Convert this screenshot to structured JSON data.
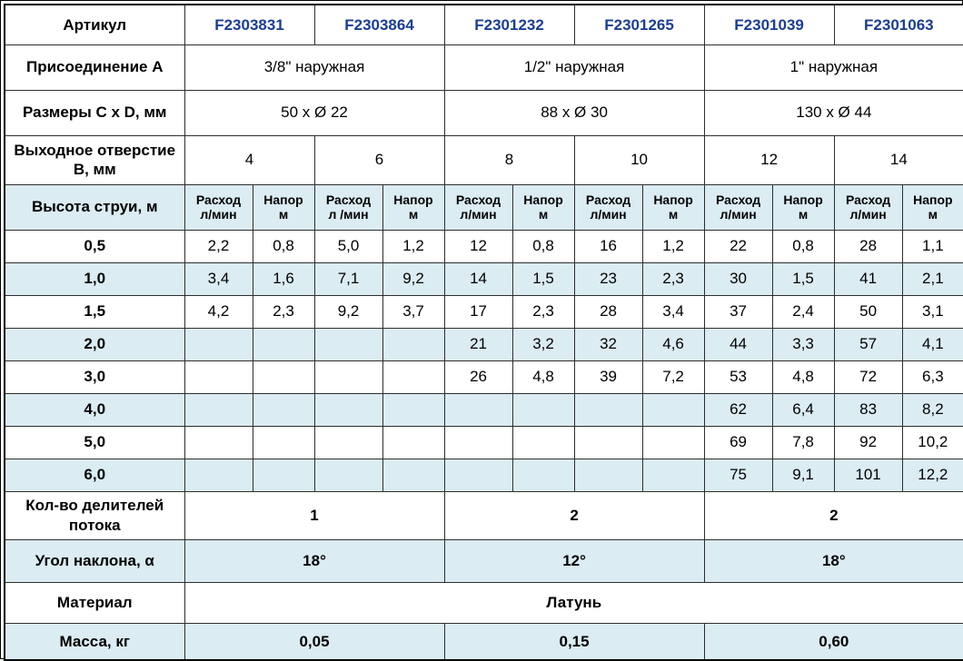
{
  "colors": {
    "article_blue": "#1b3d94",
    "row_shade": "#dbecf3",
    "grid_line": "#2e2e2e",
    "frame": "#000000"
  },
  "table": {
    "article": {
      "label": "Артикул",
      "values": [
        "F2303831",
        "F2303864",
        "F2301232",
        "F2301265",
        "F2301039",
        "F2301063"
      ]
    },
    "connection": {
      "label": "Присоединение А",
      "values": [
        "3/8\" наружная",
        "1/2\" наружная",
        "1\" наружная"
      ]
    },
    "dimensions": {
      "label": "Размеры С x D, мм",
      "values": [
        "50 x Ø 22",
        "88 x Ø 30",
        "130 x Ø 44"
      ]
    },
    "outlet": {
      "label": "Выходное отверстие В, мм",
      "values": [
        "4",
        "6",
        "8",
        "10",
        "12",
        "14"
      ]
    },
    "jet_header": {
      "label": "Высота струи, м",
      "cells": [
        {
          "l1": "Расход",
          "l2": "л/мин"
        },
        {
          "l1": "Напор",
          "l2": "м"
        },
        {
          "l1": "Расход",
          "l2": "л /мин"
        },
        {
          "l1": "Напор",
          "l2": "м"
        },
        {
          "l1": "Расход",
          "l2": "л/мин"
        },
        {
          "l1": "Напор",
          "l2": "м"
        },
        {
          "l1": "Расход",
          "l2": "л/мин"
        },
        {
          "l1": "Напор",
          "l2": "м"
        },
        {
          "l1": "Расход",
          "l2": "л/мин"
        },
        {
          "l1": "Напор",
          "l2": "м"
        },
        {
          "l1": "Расход",
          "l2": "л/мин"
        },
        {
          "l1": "Напор",
          "l2": "м"
        }
      ]
    },
    "jet_rows": [
      {
        "label": "0,5",
        "shaded": false,
        "values": [
          "2,2",
          "0,8",
          "5,0",
          "1,2",
          "12",
          "0,8",
          "16",
          "1,2",
          "22",
          "0,8",
          "28",
          "1,1"
        ]
      },
      {
        "label": "1,0",
        "shaded": true,
        "values": [
          "3,4",
          "1,6",
          "7,1",
          "9,2",
          "14",
          "1,5",
          "23",
          "2,3",
          "30",
          "1,5",
          "41",
          "2,1"
        ]
      },
      {
        "label": "1,5",
        "shaded": false,
        "values": [
          "4,2",
          "2,3",
          "9,2",
          "3,7",
          "17",
          "2,3",
          "28",
          "3,4",
          "37",
          "2,4",
          "50",
          "3,1"
        ]
      },
      {
        "label": "2,0",
        "shaded": true,
        "values": [
          "",
          "",
          "",
          "",
          "21",
          "3,2",
          "32",
          "4,6",
          "44",
          "3,3",
          "57",
          "4,1"
        ]
      },
      {
        "label": "3,0",
        "shaded": false,
        "values": [
          "",
          "",
          "",
          "",
          "26",
          "4,8",
          "39",
          "7,2",
          "53",
          "4,8",
          "72",
          "6,3"
        ]
      },
      {
        "label": "4,0",
        "shaded": true,
        "values": [
          "",
          "",
          "",
          "",
          "",
          "",
          "",
          "",
          "62",
          "6,4",
          "83",
          "8,2"
        ]
      },
      {
        "label": "5,0",
        "shaded": false,
        "values": [
          "",
          "",
          "",
          "",
          "",
          "",
          "",
          "",
          "69",
          "7,8",
          "92",
          "10,2"
        ]
      },
      {
        "label": "6,0",
        "shaded": true,
        "values": [
          "",
          "",
          "",
          "",
          "",
          "",
          "",
          "",
          "75",
          "9,1",
          "101",
          "12,2"
        ]
      }
    ],
    "dividers": {
      "label": "Кол-во делителей потока",
      "values": [
        "1",
        "2",
        "2"
      ]
    },
    "angle": {
      "label": "Угол наклона, α",
      "values": [
        "18°",
        "12°",
        "18°"
      ]
    },
    "material": {
      "label": "Материал",
      "value": "Латунь"
    },
    "mass": {
      "label": "Масса, кг",
      "values": [
        "0,05",
        "0,15",
        "0,60"
      ]
    }
  }
}
